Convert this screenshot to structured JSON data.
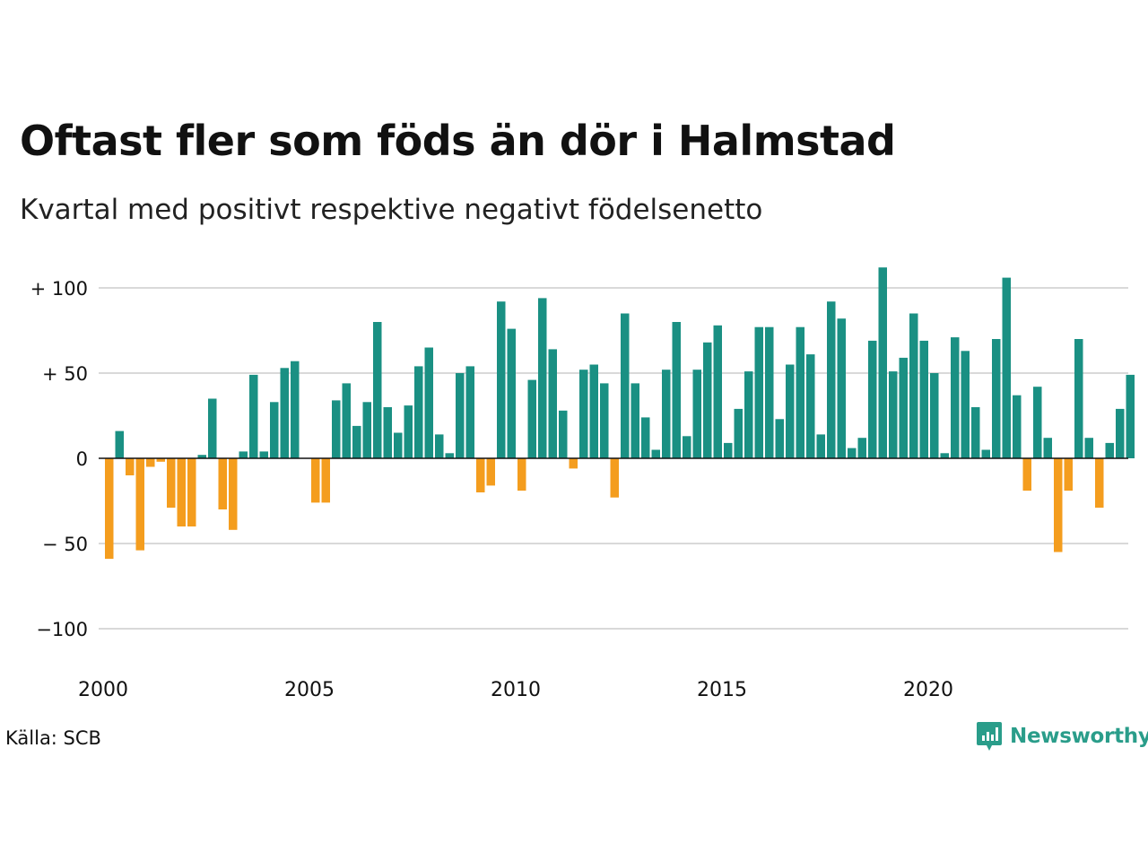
{
  "title": "Oftast fler som föds än dör i Halmstad",
  "subtitle": "Kvartal med positivt respektive negativt födelsenetto",
  "source": "Källa: SCB",
  "brand": "Newsworthy",
  "colors": {
    "positive": "#1a9083",
    "negative": "#f49d1e",
    "grid": "#d9d9d9",
    "axis": "#111111",
    "brand": "#2a9d8a"
  },
  "chart_data": {
    "type": "bar",
    "ylim": [
      -110,
      110
    ],
    "y_ticks": [
      100,
      50,
      0,
      -50,
      -100
    ],
    "y_tick_labels": [
      "+ 100",
      "+  50",
      "0",
      "− 50",
      "−100"
    ],
    "x_ticks": [
      2000,
      2005,
      2010,
      2015,
      2020
    ],
    "x_tick_labels": [
      "2000",
      "2005",
      "2010",
      "2015",
      "2020"
    ],
    "start_year": 2000,
    "grid": true,
    "values": [
      -59,
      16,
      -10,
      -54,
      -5,
      -2,
      -29,
      -40,
      -40,
      2,
      35,
      -30,
      -42,
      4,
      49,
      4,
      33,
      53,
      57,
      0,
      -26,
      -26,
      34,
      44,
      19,
      33,
      80,
      30,
      15,
      31,
      54,
      65,
      14,
      3,
      50,
      54,
      -20,
      -16,
      92,
      76,
      -19,
      46,
      94,
      64,
      28,
      -6,
      52,
      55,
      44,
      -23,
      85,
      44,
      24,
      5,
      52,
      80,
      13,
      52,
      68,
      78,
      9,
      29,
      51,
      77,
      77,
      23,
      55,
      77,
      61,
      14,
      92,
      82,
      6,
      12,
      69,
      112,
      51,
      59,
      85,
      69,
      50,
      3,
      71,
      63,
      30,
      5,
      70,
      106,
      37,
      -19,
      42,
      12,
      -55,
      -19,
      70,
      12,
      -29,
      9,
      29,
      49
    ]
  }
}
